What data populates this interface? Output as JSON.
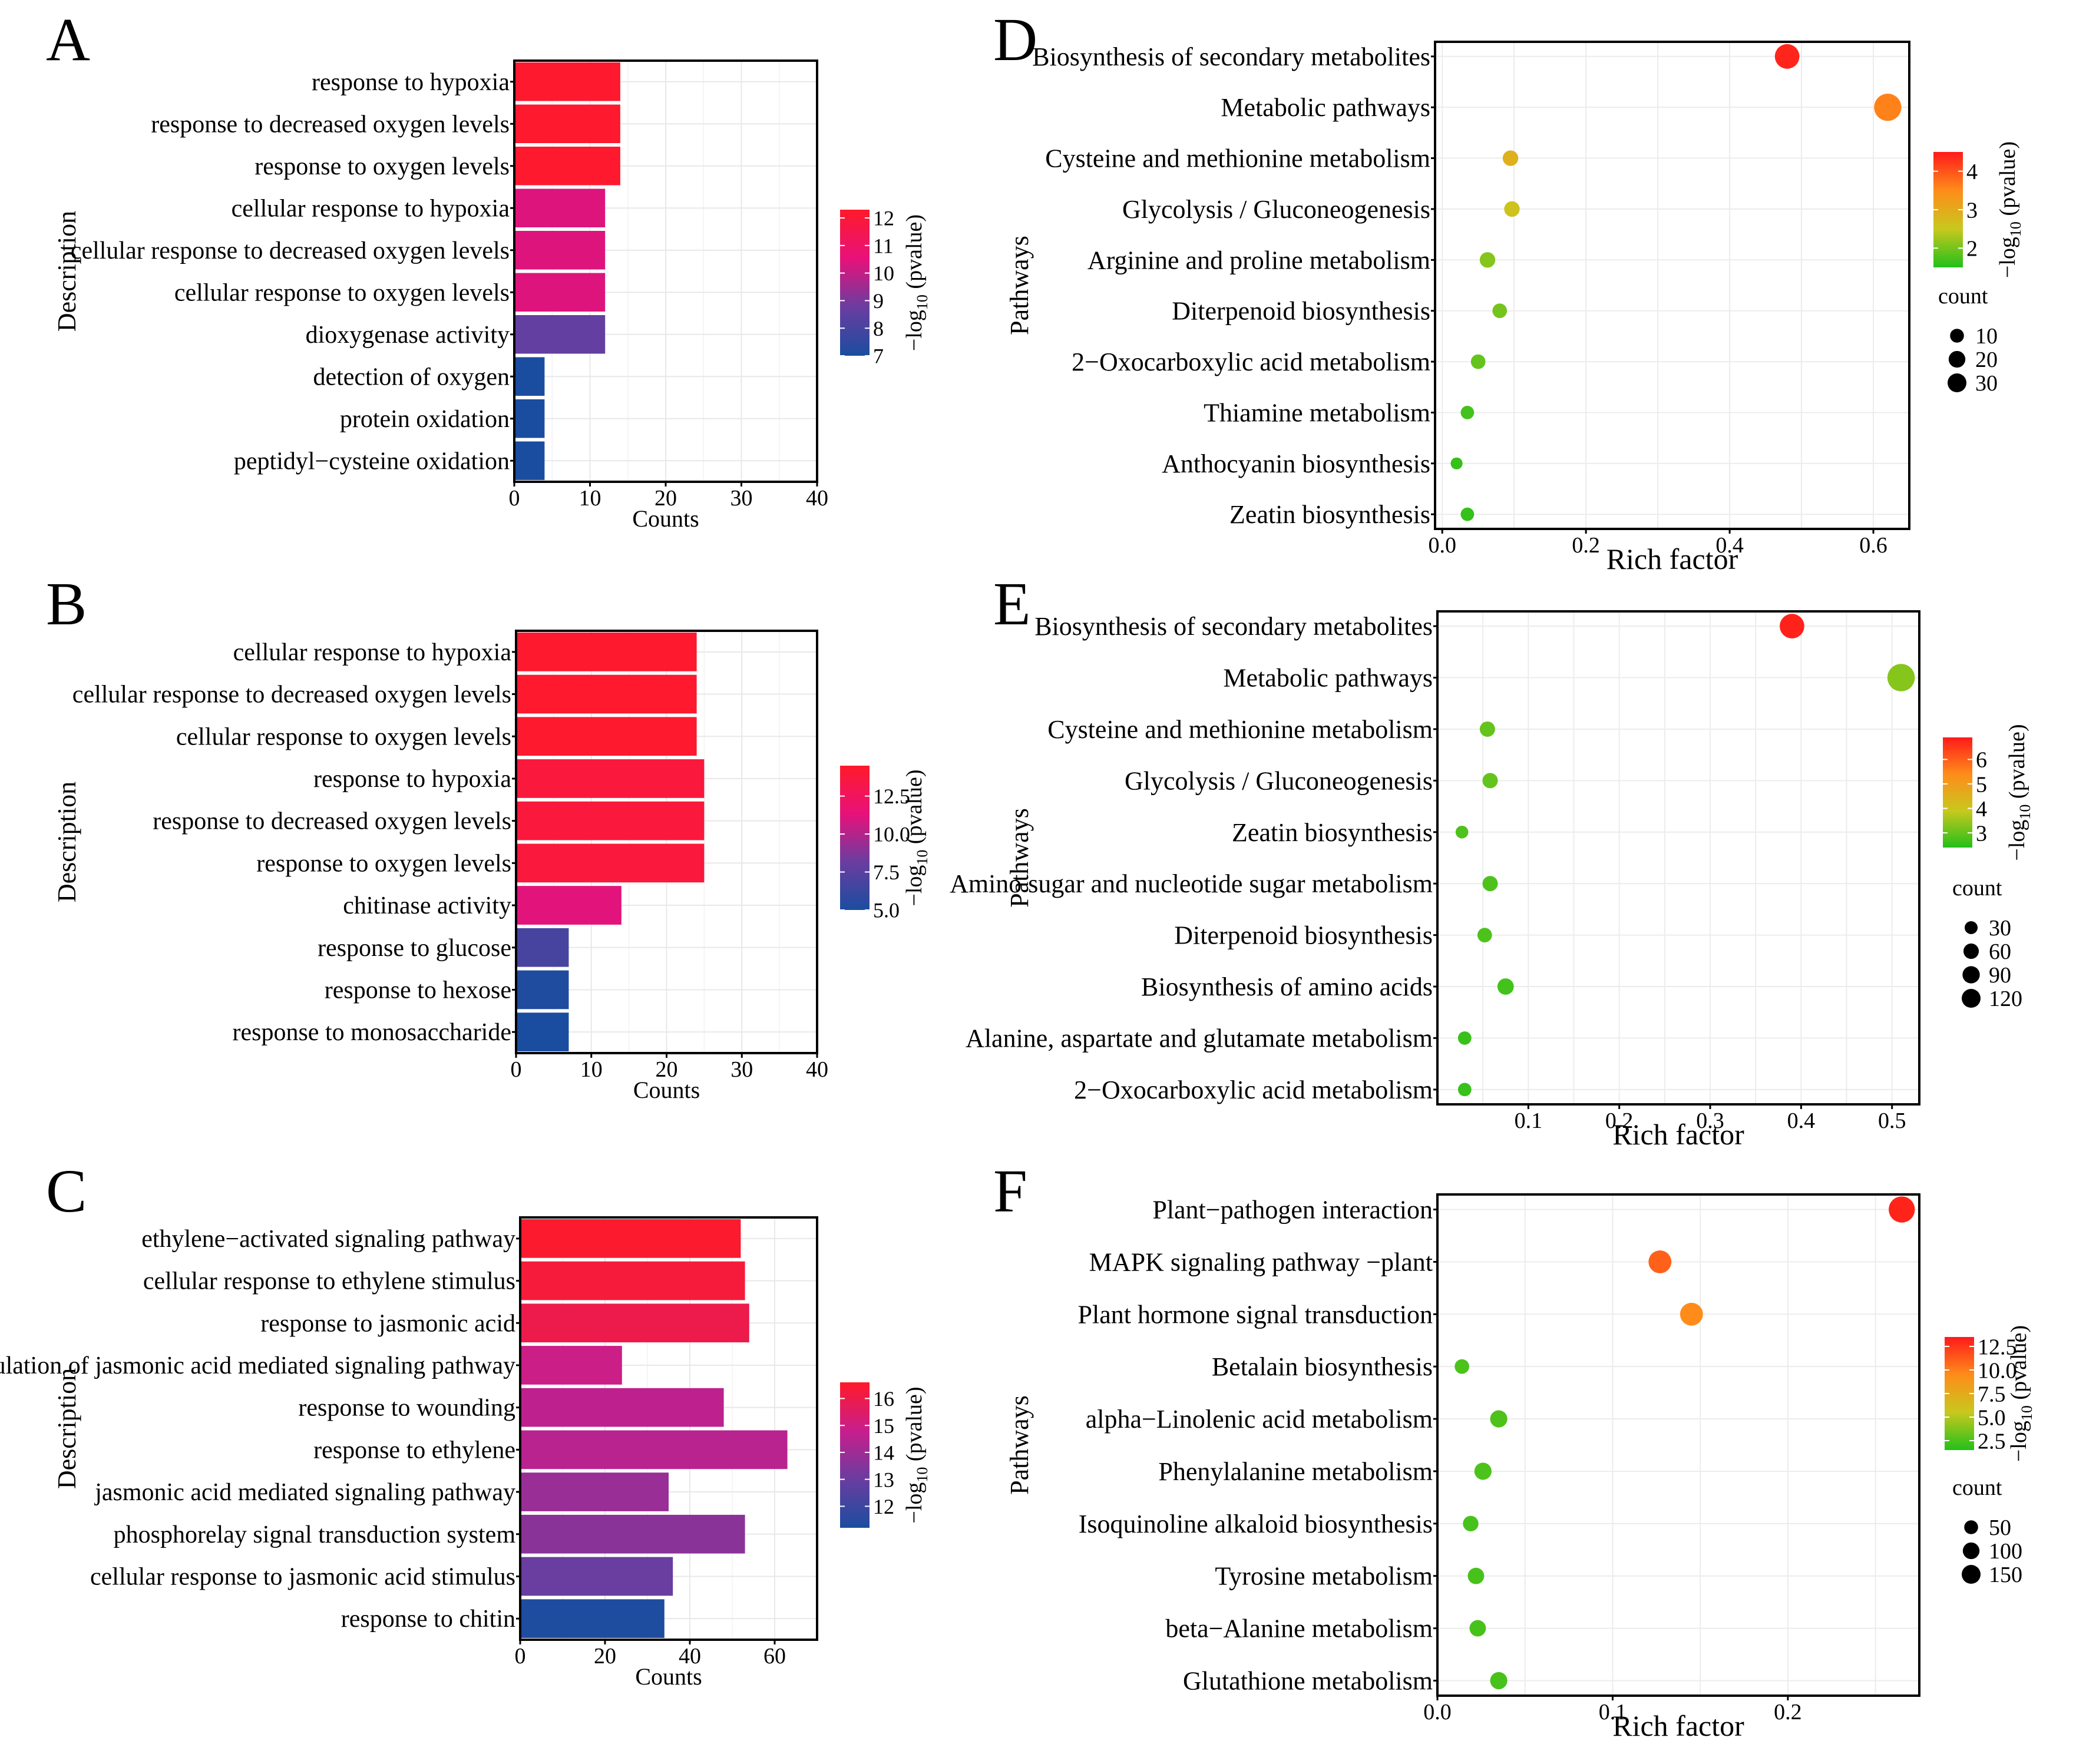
{
  "figure": {
    "colorbar_title": "−log",
    "colorbar_sub": "10",
    "colorbar_suffix": " (pvalue)"
  },
  "chart_data": [
    {
      "panel": "A",
      "type": "bar",
      "orientation": "horizontal",
      "ylabel": "Description",
      "xlabel": "Counts",
      "xlim": [
        0,
        40
      ],
      "xticks": [
        0,
        10,
        20,
        30,
        40
      ],
      "categories": [
        "response to hypoxia",
        "response to decreased oxygen levels",
        "response to oxygen levels",
        "cellular response to hypoxia",
        "cellular response to decreased oxygen levels",
        "cellular response to oxygen levels",
        "dioxygenase activity",
        "detection of oxygen",
        "protein oxidation",
        "peptidyl−cysteine oxidation"
      ],
      "values": [
        14,
        14,
        14,
        12,
        12,
        12,
        12,
        4,
        4,
        4
      ],
      "neglog10_pvalue": [
        12.2,
        12.2,
        12.2,
        10.4,
        10.4,
        10.4,
        8.6,
        7.0,
        7.0,
        7.0
      ],
      "colorbar": {
        "min": 7,
        "max": 12.3,
        "ticks": [
          "12",
          "11",
          "10",
          "9",
          "8",
          "7"
        ],
        "tick_values": [
          12,
          11,
          10,
          9,
          8,
          7
        ],
        "colors": [
          "#1a4d9f",
          "#6a3da0",
          "#e8117a",
          "#ff1a2a"
        ]
      }
    },
    {
      "panel": "B",
      "type": "bar",
      "orientation": "horizontal",
      "ylabel": "Description",
      "xlabel": "Counts",
      "xlim": [
        0,
        40
      ],
      "xticks": [
        0,
        10,
        20,
        30,
        40
      ],
      "categories": [
        "cellular response to hypoxia",
        "cellular response to decreased oxygen levels",
        "cellular response to oxygen levels",
        "response to hypoxia",
        "response to decreased oxygen levels",
        "response to oxygen levels",
        "chitinase activity",
        "response to glucose",
        "response to hexose",
        "response to monosaccharide"
      ],
      "values": [
        24,
        24,
        24,
        25,
        25,
        25,
        14,
        7,
        7,
        7
      ],
      "neglog10_pvalue": [
        14.3,
        14.3,
        14.3,
        13.8,
        13.8,
        13.8,
        11.2,
        6.8,
        5.2,
        5.0
      ],
      "colorbar": {
        "min": 5.0,
        "max": 14.5,
        "ticks": [
          "12.5",
          "10.0",
          "7.5",
          "5.0"
        ],
        "tick_values": [
          12.5,
          10.0,
          7.5,
          5.0
        ],
        "colors": [
          "#1a4d9f",
          "#6a3da0",
          "#e8117a",
          "#ff1a2a"
        ]
      }
    },
    {
      "panel": "C",
      "type": "bar",
      "orientation": "horizontal",
      "ylabel": "Description",
      "xlabel": "Counts",
      "xlim": [
        0,
        70
      ],
      "xticks": [
        0,
        20,
        40,
        60
      ],
      "categories": [
        "ethylene−activated signaling pathway",
        "cellular response to ethylene stimulus",
        "response to jasmonic acid",
        "regulation of jasmonic acid mediated signaling pathway",
        "response to wounding",
        "response to ethylene",
        "jasmonic acid mediated signaling pathway",
        "phosphorelay signal transduction system",
        "cellular response to jasmonic acid stimulus",
        "response to chitin"
      ],
      "values": [
        52,
        53,
        54,
        24,
        48,
        63,
        35,
        53,
        36,
        34
      ],
      "neglog10_pvalue": [
        16.5,
        16.3,
        16.0,
        14.9,
        14.6,
        14.5,
        13.9,
        13.6,
        13.0,
        11.3
      ],
      "colorbar": {
        "min": 11.2,
        "max": 16.6,
        "ticks": [
          "16",
          "15",
          "14",
          "13",
          "12"
        ],
        "tick_values": [
          16,
          15,
          14,
          13,
          12
        ],
        "colors": [
          "#1a4d9f",
          "#6a3da0",
          "#c81e8c",
          "#ff1a2a"
        ]
      }
    },
    {
      "panel": "D",
      "type": "scatter",
      "ylabel": "Pathways",
      "xlabel": "Rich factor",
      "xlim": [
        -0.01,
        0.65
      ],
      "xticks": [
        0.0,
        0.2,
        0.4,
        0.6
      ],
      "xtick_labels": [
        "0.0",
        "0.2",
        "0.4",
        "0.6"
      ],
      "categories": [
        "Biosynthesis of secondary metabolites",
        "Metabolic pathways",
        "Cysteine and methionine metabolism",
        "Glycolysis / Gluconeogenesis",
        "Arginine and proline metabolism",
        "Diterpenoid biosynthesis",
        "2−Oxocarboxylic acid metabolism",
        "Thiamine metabolism",
        "Anthocyanin biosynthesis",
        "Zeatin biosynthesis"
      ],
      "rich_factor": [
        0.48,
        0.62,
        0.095,
        0.097,
        0.063,
        0.08,
        0.05,
        0.035,
        0.02,
        0.035
      ],
      "count": [
        20,
        27,
        4,
        4,
        4,
        3,
        3,
        2,
        1,
        2
      ],
      "neglog10_pvalue": [
        4.4,
        3.6,
        2.9,
        2.6,
        2.1,
        2.0,
        1.9,
        1.7,
        1.6,
        1.6
      ],
      "colorbar": {
        "min": 1.5,
        "max": 4.5,
        "ticks": [
          "4",
          "3",
          "2"
        ],
        "tick_values": [
          4,
          3,
          2
        ],
        "colors": [
          "#22c01a",
          "#c8c81e",
          "#ff8c1a",
          "#ff1a1a"
        ]
      },
      "size_legend_title": "count",
      "size_legend": [
        "10",
        "20",
        "30"
      ],
      "size_legend_values": [
        10,
        20,
        30
      ],
      "size_max": 30
    },
    {
      "panel": "E",
      "type": "scatter",
      "ylabel": "Pathways",
      "xlabel": "Rich factor",
      "xlim": [
        0.0,
        0.53
      ],
      "xticks": [
        0.1,
        0.2,
        0.3,
        0.4,
        0.5
      ],
      "xtick_labels": [
        "0.1",
        "0.2",
        "0.3",
        "0.4",
        "0.5"
      ],
      "categories": [
        "Biosynthesis of secondary metabolites",
        "Metabolic pathways",
        "Cysteine and methionine metabolism",
        "Glycolysis / Gluconeogenesis",
        "Zeatin biosynthesis",
        "Amino sugar and nucleotide sugar metabolism",
        "Diterpenoid biosynthesis",
        "Biosynthesis of amino acids",
        "Alanine, aspartate and glutamate metabolism",
        "2−Oxocarboxylic acid metabolism"
      ],
      "rich_factor": [
        0.39,
        0.51,
        0.055,
        0.058,
        0.027,
        0.058,
        0.052,
        0.075,
        0.03,
        0.03
      ],
      "count": [
        80,
        110,
        15,
        15,
        6,
        15,
        12,
        20,
        8,
        8
      ],
      "neglog10_pvalue": [
        6.8,
        3.3,
        3.0,
        3.0,
        2.8,
        2.8,
        2.8,
        2.7,
        2.6,
        2.6
      ],
      "colorbar": {
        "min": 2.4,
        "max": 6.9,
        "ticks": [
          "6",
          "5",
          "4",
          "3"
        ],
        "tick_values": [
          6,
          5,
          4,
          3
        ],
        "colors": [
          "#22c01a",
          "#c8c81e",
          "#ff8c1a",
          "#ff1a1a"
        ]
      },
      "size_legend_title": "count",
      "size_legend": [
        "30",
        "60",
        "90",
        "120"
      ],
      "size_legend_values": [
        30,
        60,
        90,
        120
      ],
      "size_max": 120
    },
    {
      "panel": "F",
      "type": "scatter",
      "ylabel": "Pathways",
      "xlabel": "Rich factor",
      "xlim": [
        0.0,
        0.275
      ],
      "xticks": [
        0.0,
        0.1,
        0.2
      ],
      "xtick_labels": [
        "0.0",
        "0.1",
        "0.2"
      ],
      "categories": [
        "Plant−pathogen interaction",
        "MAPK signaling pathway −plant",
        "Plant hormone signal transduction",
        "Betalain biosynthesis",
        "alpha−Linolenic acid metabolism",
        "Phenylalanine metabolism",
        "Isoquinoline alkaloid biosynthesis",
        "Tyrosine metabolism",
        "beta−Alanine metabolism",
        "Glutathione metabolism"
      ],
      "rich_factor": [
        0.265,
        0.127,
        0.145,
        0.014,
        0.035,
        0.026,
        0.019,
        0.022,
        0.023,
        0.035
      ],
      "count": [
        120,
        80,
        80,
        15,
        30,
        30,
        20,
        25,
        25,
        30
      ],
      "neglog10_pvalue": [
        13.2,
        11.0,
        9.5,
        2.5,
        2.5,
        2.5,
        2.4,
        2.4,
        2.4,
        2.4
      ],
      "colorbar": {
        "min": 1.5,
        "max": 13.5,
        "ticks": [
          "12.5",
          "10.0",
          "7.5",
          "5.0",
          "2.5"
        ],
        "tick_values": [
          12.5,
          10.0,
          7.5,
          5.0,
          2.5
        ],
        "colors": [
          "#22c01a",
          "#c8c81e",
          "#ff8c1a",
          "#ff1a1a"
        ]
      },
      "size_legend_title": "count",
      "size_legend": [
        "50",
        "100",
        "150"
      ],
      "size_legend_values": [
        50,
        100,
        150
      ],
      "size_max": 150
    }
  ]
}
